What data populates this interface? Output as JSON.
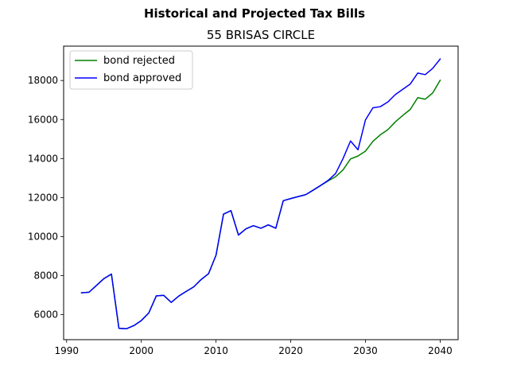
{
  "chart_data": {
    "type": "line",
    "suptitle": "Historical and Projected Tax Bills",
    "title": "55 BRISAS CIRCLE",
    "xlabel": "",
    "ylabel": "",
    "xlim": [
      1989.6,
      2042.4
    ],
    "ylim": [
      4720,
      19760
    ],
    "xticks": [
      1990,
      2000,
      2010,
      2020,
      2030,
      2040
    ],
    "yticks": [
      6000,
      8000,
      10000,
      12000,
      14000,
      16000,
      18000
    ],
    "grid": false,
    "legend_position": "upper left",
    "series": [
      {
        "name": "bond rejected",
        "color": "#008000",
        "x": [
          1992,
          1993,
          1994,
          1995,
          1996,
          1997,
          1998,
          1999,
          2000,
          2001,
          2002,
          2003,
          2004,
          2005,
          2006,
          2007,
          2008,
          2009,
          2010,
          2011,
          2012,
          2013,
          2014,
          2015,
          2016,
          2017,
          2018,
          2019,
          2020,
          2021,
          2022,
          2023,
          2024,
          2025,
          2026,
          2027,
          2028,
          2029,
          2030,
          2031,
          2032,
          2033,
          2034,
          2035,
          2036,
          2037,
          2038,
          2039,
          2040
        ],
        "y": [
          7120,
          7150,
          7500,
          7850,
          8080,
          5300,
          5280,
          5440,
          5700,
          6090,
          6960,
          6990,
          6630,
          6950,
          7190,
          7420,
          7800,
          8100,
          9050,
          11150,
          11330,
          10080,
          10400,
          10560,
          10430,
          10600,
          10430,
          11840,
          11950,
          12050,
          12150,
          12380,
          12620,
          12850,
          13070,
          13420,
          13980,
          14130,
          14380,
          14880,
          15220,
          15480,
          15880,
          16210,
          16520,
          17120,
          17040,
          17360,
          18010
        ]
      },
      {
        "name": "bond approved",
        "color": "#0000ff",
        "x": [
          1992,
          1993,
          1994,
          1995,
          1996,
          1997,
          1998,
          1999,
          2000,
          2001,
          2002,
          2003,
          2004,
          2005,
          2006,
          2007,
          2008,
          2009,
          2010,
          2011,
          2012,
          2013,
          2014,
          2015,
          2016,
          2017,
          2018,
          2019,
          2020,
          2021,
          2022,
          2023,
          2024,
          2025,
          2026,
          2027,
          2028,
          2029,
          2030,
          2031,
          2032,
          2033,
          2034,
          2035,
          2036,
          2037,
          2038,
          2039,
          2040
        ],
        "y": [
          7120,
          7150,
          7500,
          7850,
          8080,
          5300,
          5280,
          5440,
          5700,
          6090,
          6960,
          6990,
          6630,
          6950,
          7190,
          7420,
          7800,
          8100,
          9050,
          11150,
          11330,
          10080,
          10400,
          10560,
          10430,
          10600,
          10430,
          11840,
          11950,
          12050,
          12150,
          12380,
          12620,
          12880,
          13230,
          14000,
          14900,
          14450,
          15980,
          16600,
          16660,
          16900,
          17280,
          17550,
          17820,
          18380,
          18300,
          18620,
          19100
        ]
      }
    ]
  }
}
